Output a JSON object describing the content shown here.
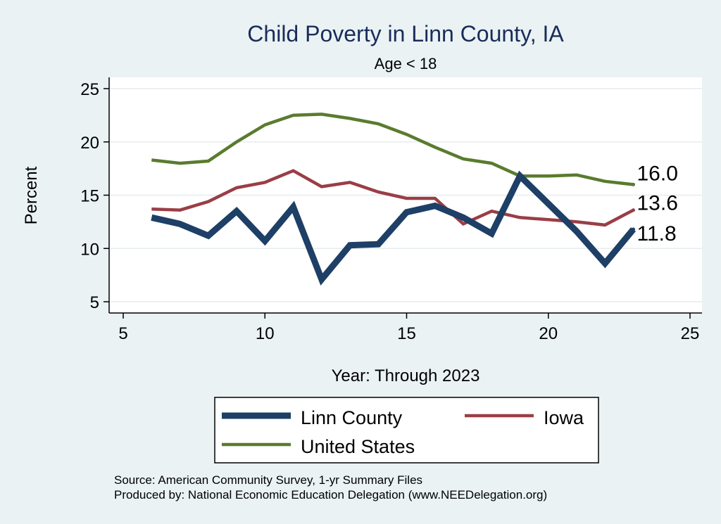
{
  "chart_data": {
    "type": "line",
    "title": "Child Poverty in Linn County, IA",
    "subtitle": "Age < 18",
    "xlabel": "Year: Through 2023",
    "ylabel": "Percent",
    "xlim": [
      5,
      25
    ],
    "ylim": [
      4,
      26
    ],
    "xticks": [
      5,
      10,
      15,
      20,
      25
    ],
    "yticks": [
      5,
      10,
      15,
      20,
      25
    ],
    "grid": true,
    "legend_position": "bottom",
    "series": [
      {
        "name": "Linn County",
        "color": "#1e3f66",
        "x": [
          6,
          7,
          8,
          9,
          10,
          11,
          12,
          13,
          14,
          15,
          16,
          17,
          18,
          19,
          20,
          21,
          22,
          23
        ],
        "values": [
          12.9,
          12.3,
          11.2,
          13.5,
          10.7,
          13.9,
          7.1,
          10.3,
          10.4,
          13.4,
          14.0,
          12.9,
          11.4,
          16.8,
          14.2,
          11.6,
          8.6,
          11.8
        ],
        "end_label": "11.8"
      },
      {
        "name": "Iowa",
        "color": "#9a3e46",
        "x": [
          6,
          7,
          8,
          9,
          10,
          11,
          12,
          13,
          14,
          15,
          16,
          17,
          18,
          19,
          20,
          21,
          22,
          23
        ],
        "values": [
          13.7,
          13.6,
          14.4,
          15.7,
          16.2,
          17.3,
          15.8,
          16.2,
          15.3,
          14.7,
          14.7,
          12.3,
          13.5,
          12.9,
          12.7,
          12.5,
          12.2,
          13.6
        ],
        "end_label": "13.6"
      },
      {
        "name": "United States",
        "color": "#5a7b2e",
        "x": [
          6,
          7,
          8,
          9,
          10,
          11,
          12,
          13,
          14,
          15,
          16,
          17,
          18,
          19,
          20,
          21,
          22,
          23
        ],
        "values": [
          18.3,
          18.0,
          18.2,
          20.0,
          21.6,
          22.5,
          22.6,
          22.2,
          21.7,
          20.7,
          19.5,
          18.4,
          18.0,
          16.8,
          16.8,
          16.9,
          16.3,
          16.0
        ],
        "end_label": "16.0"
      }
    ]
  },
  "notes": {
    "source": "Source: American Community Survey, 1-yr Summary Files",
    "produced_by": "Produced by: National Economic Education Delegation (www.NEEDelegation.org)"
  }
}
